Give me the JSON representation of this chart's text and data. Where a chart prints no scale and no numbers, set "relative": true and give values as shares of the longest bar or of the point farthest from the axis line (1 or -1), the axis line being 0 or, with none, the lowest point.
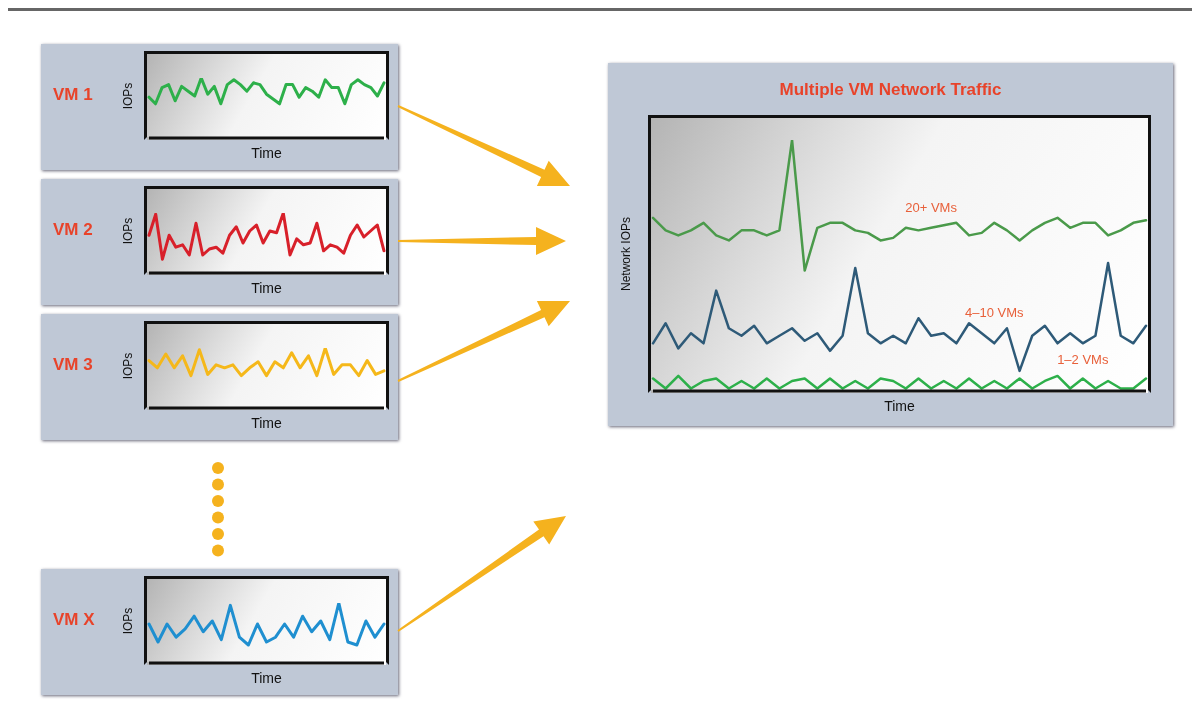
{
  "chart_data": [
    {
      "type": "line",
      "title": "VM 1",
      "xlabel": "Time",
      "ylabel": "IOPs",
      "relative": true,
      "marker": "none",
      "categories": [
        null,
        null,
        null,
        null,
        null,
        null,
        null,
        null,
        null,
        null,
        null,
        null,
        null,
        null,
        null,
        null,
        null,
        null,
        null,
        null,
        null,
        null,
        null,
        null,
        null,
        null,
        null,
        null,
        null,
        null,
        null,
        null,
        null,
        null,
        null,
        null,
        null
      ],
      "series": [
        {
          "color": "#2db04a",
          "values": [
            0.68,
            0.57,
            0.84,
            0.89,
            0.62,
            0.86,
            0.78,
            0.7,
            1,
            0.73,
            0.86,
            0.57,
            0.89,
            0.97,
            0.89,
            0.78,
            0.92,
            0.89,
            0.73,
            0.65,
            0.57,
            0.89,
            0.89,
            0.68,
            0.84,
            0.78,
            0.68,
            0.97,
            0.84,
            0.84,
            0.57,
            0.89,
            0.97,
            0.89,
            0.84,
            0.7,
            0.92
          ]
        }
      ]
    },
    {
      "type": "line",
      "title": "VM 2",
      "xlabel": "Time",
      "ylabel": "IOPs",
      "relative": true,
      "marker": "none",
      "categories": [
        null,
        null,
        null,
        null,
        null,
        null,
        null,
        null,
        null,
        null,
        null,
        null,
        null,
        null,
        null,
        null,
        null,
        null,
        null,
        null,
        null,
        null,
        null,
        null,
        null,
        null,
        null,
        null,
        null,
        null,
        null,
        null,
        null,
        null,
        null,
        null
      ],
      "series": [
        {
          "color": "#d8202a",
          "values": [
            0.63,
            0.98,
            0.23,
            0.63,
            0.43,
            0.47,
            0.3,
            0.83,
            0.3,
            0.4,
            0.43,
            0.33,
            0.63,
            0.77,
            0.5,
            0.7,
            0.8,
            0.5,
            0.7,
            0.67,
            1,
            0.3,
            0.57,
            0.47,
            0.5,
            0.83,
            0.37,
            0.47,
            0.43,
            0.33,
            0.63,
            0.8,
            0.6,
            0.7,
            0.8,
            0.37
          ]
        }
      ]
    },
    {
      "type": "line",
      "title": "VM 3",
      "xlabel": "Time",
      "ylabel": "IOPs",
      "relative": true,
      "marker": "none",
      "categories": [
        null,
        null,
        null,
        null,
        null,
        null,
        null,
        null,
        null,
        null,
        null,
        null,
        null,
        null,
        null,
        null,
        null,
        null,
        null,
        null,
        null,
        null,
        null,
        null,
        null,
        null,
        null,
        null,
        null
      ],
      "series": [
        {
          "color": "#f5b81a",
          "values": [
            0.79,
            0.67,
            0.9,
            0.67,
            0.87,
            0.54,
            0.97,
            0.56,
            0.72,
            0.67,
            0.72,
            0.54,
            0.67,
            0.77,
            0.54,
            0.77,
            0.67,
            0.92,
            0.67,
            0.87,
            0.54,
            1,
            0.56,
            0.72,
            0.72,
            0.54,
            0.79,
            0.56,
            0.62
          ]
        }
      ]
    },
    {
      "type": "line",
      "title": "VM X",
      "xlabel": "Time",
      "ylabel": "IOPs",
      "relative": true,
      "marker": "none",
      "categories": [
        null,
        null,
        null,
        null,
        null,
        null,
        null,
        null,
        null,
        null,
        null,
        null,
        null,
        null,
        null,
        null,
        null,
        null,
        null,
        null,
        null,
        null,
        null,
        null,
        null,
        null,
        null
      ],
      "series": [
        {
          "color": "#1f8fd0",
          "values": [
            0.65,
            0.35,
            0.65,
            0.43,
            0.57,
            0.78,
            0.52,
            0.7,
            0.39,
            0.96,
            0.43,
            0.3,
            0.65,
            0.35,
            0.43,
            0.65,
            0.43,
            0.78,
            0.52,
            0.7,
            0.39,
            1,
            0.35,
            0.3,
            0.7,
            0.43,
            0.65
          ]
        }
      ]
    },
    {
      "type": "line",
      "title": "Multiple VM Network Traffic",
      "xlabel": "Time",
      "ylabel": "Network IOPs",
      "relative": true,
      "marker": "none",
      "categories": [
        null,
        null,
        null,
        null,
        null,
        null,
        null,
        null,
        null,
        null,
        null,
        null,
        null,
        null,
        null,
        null,
        null,
        null,
        null,
        null,
        null,
        null,
        null,
        null,
        null,
        null,
        null,
        null,
        null,
        null,
        null,
        null,
        null,
        null,
        null,
        null,
        null,
        null,
        null,
        null
      ],
      "series": [
        {
          "name": "20+ VMs",
          "color": "#4a9a4a",
          "values": [
            0.69,
            0.64,
            0.62,
            0.64,
            0.67,
            0.62,
            0.6,
            0.64,
            0.64,
            0.62,
            0.64,
            1,
            0.48,
            0.65,
            0.67,
            0.67,
            0.64,
            0.63,
            0.6,
            0.61,
            0.65,
            0.64,
            0.65,
            0.66,
            0.67,
            0.62,
            0.63,
            0.67,
            0.64,
            0.6,
            0.64,
            0.67,
            0.69,
            0.65,
            0.67,
            0.67,
            0.62,
            0.64,
            0.67,
            0.68
          ]
        },
        {
          "name": "4–10 VMs",
          "color": "#2e5a78",
          "values": [
            0.19,
            0.27,
            0.17,
            0.23,
            0.19,
            0.4,
            0.25,
            0.22,
            0.26,
            0.19,
            0.22,
            0.25,
            0.2,
            0.23,
            0.16,
            0.22,
            0.49,
            0.23,
            0.19,
            0.22,
            0.19,
            0.29,
            0.22,
            0.23,
            0.19,
            0.27,
            0.23,
            0.19,
            0.25,
            0.08,
            0.22,
            0.26,
            0.19,
            0.23,
            0.19,
            0.22,
            0.51,
            0.22,
            0.19,
            0.26
          ]
        },
        {
          "name": "1–2 VMs",
          "color": "#2db04a",
          "values": [
            0.05,
            0.01,
            0.06,
            0.01,
            0.04,
            0.05,
            0.01,
            0.04,
            0.01,
            0.05,
            0.01,
            0.04,
            0.05,
            0.01,
            0.05,
            0.01,
            0.04,
            0.01,
            0.05,
            0.04,
            0.01,
            0.05,
            0.01,
            0.04,
            0.01,
            0.05,
            0.01,
            0.04,
            0.01,
            0.05,
            0.01,
            0.04,
            0.06,
            0.01,
            0.05,
            0.01,
            0.04,
            0.01,
            0.01,
            0.05
          ]
        }
      ]
    }
  ]
}
